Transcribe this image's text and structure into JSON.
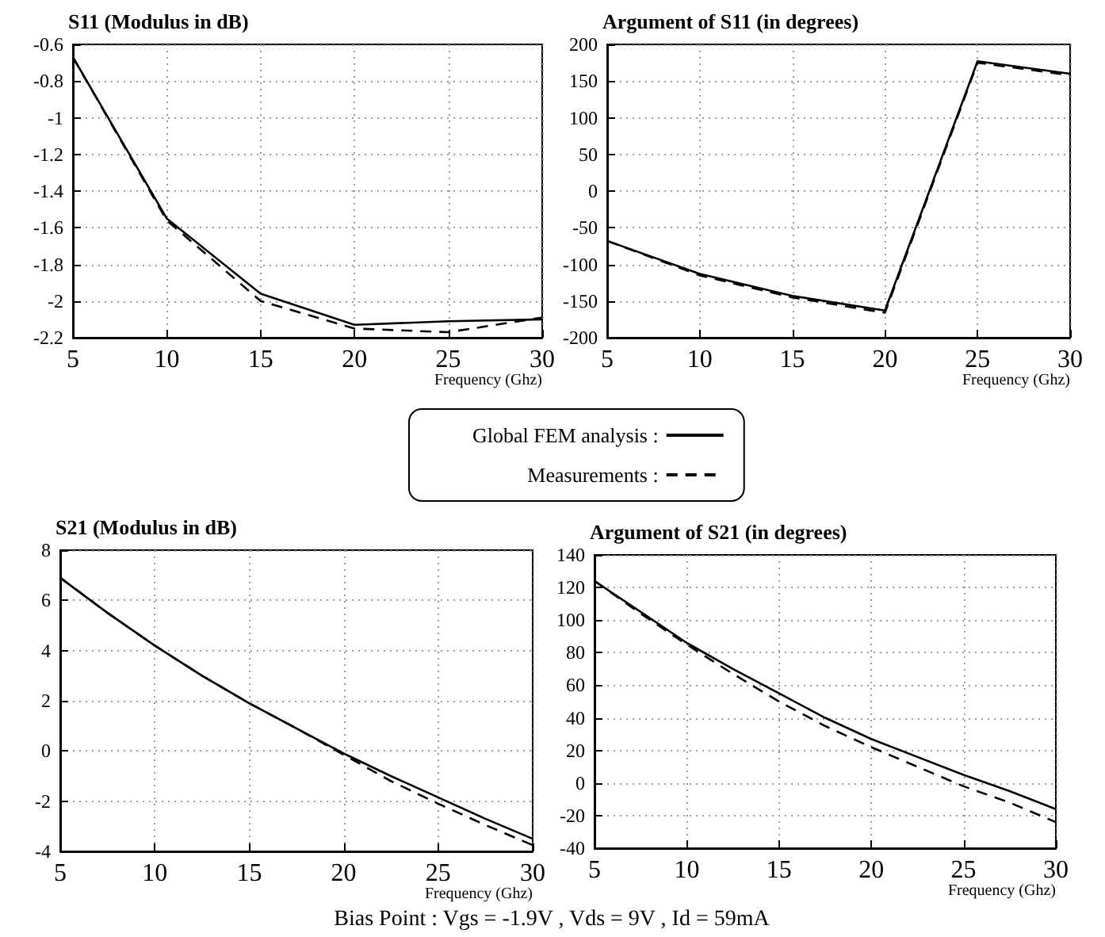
{
  "chart_data": [
    {
      "type": "line",
      "title": "S11 (Modulus in dB)",
      "xlabel": "Frequency (Ghz)",
      "legend": "bottom",
      "grid": true,
      "xlim": [
        5,
        30
      ],
      "xticks": [
        5,
        10,
        15,
        20,
        25,
        30
      ],
      "ylim": [
        -2.2,
        -0.6
      ],
      "yticks": [
        -2.2,
        -2,
        -1.8,
        -1.6,
        -1.4,
        -1.2,
        -1,
        -0.8,
        -0.6
      ],
      "x": [
        5,
        10,
        15,
        20,
        25,
        30
      ],
      "series": [
        {
          "name": "Global FEM analysis :",
          "color": "#000000",
          "line_style": "solid",
          "values": [
            -0.67,
            -1.55,
            -1.96,
            -2.13,
            -2.11,
            -2.1
          ]
        },
        {
          "name": "Measurements :",
          "color": "#000000",
          "line_style": "dashed",
          "values": [
            -0.67,
            -1.56,
            -2.0,
            -2.15,
            -2.17,
            -2.09
          ]
        }
      ]
    },
    {
      "type": "line",
      "title": "Argument of S11 (in degrees)",
      "xlabel": "Frequency (Ghz)",
      "grid": true,
      "xlim": [
        5,
        30
      ],
      "xticks": [
        5,
        10,
        15,
        20,
        25,
        30
      ],
      "ylim": [
        -200,
        200
      ],
      "yticks": [
        -200,
        -150,
        -100,
        -50,
        0,
        50,
        100,
        150,
        200
      ],
      "x": [
        5,
        10,
        15,
        20,
        25,
        30
      ],
      "series": [
        {
          "color": "#000000",
          "line_style": "solid",
          "values": [
            -68,
            -113,
            -143,
            -163,
            177,
            160
          ]
        },
        {
          "color": "#000000",
          "line_style": "dashed",
          "values": [
            -68,
            -115,
            -145,
            -166,
            175,
            158
          ]
        }
      ]
    },
    {
      "type": "line",
      "title": "S21 (Modulus in dB)",
      "xlabel": "Frequency (Ghz)",
      "grid": true,
      "xlim": [
        5,
        30
      ],
      "xticks": [
        5,
        10,
        15,
        20,
        25,
        30
      ],
      "ylim": [
        -4,
        8
      ],
      "yticks": [
        -4,
        -2,
        0,
        2,
        4,
        6,
        8
      ],
      "x": [
        5,
        7.5,
        10,
        12.5,
        15,
        17.5,
        20,
        22.5,
        25,
        27.5,
        30
      ],
      "annotations": [
        "Bias Point : Vgs = -1.9V , Vds = 9V , Id = 59mA"
      ],
      "series": [
        {
          "color": "#000000",
          "line_style": "solid",
          "values": [
            6.9,
            5.5,
            4.2,
            3.0,
            1.9,
            0.9,
            -0.1,
            -1.0,
            -1.85,
            -2.7,
            -3.5
          ]
        },
        {
          "color": "#000000",
          "line_style": "dashed",
          "values": [
            6.9,
            5.5,
            4.2,
            3.0,
            1.9,
            0.9,
            -0.15,
            -1.2,
            -2.1,
            -2.95,
            -3.75
          ]
        }
      ]
    },
    {
      "type": "line",
      "title": "Argument of S21 (in degrees)",
      "xlabel": "Frequency (Ghz)",
      "grid": true,
      "xlim": [
        5,
        30
      ],
      "xticks": [
        5,
        10,
        15,
        20,
        25,
        30
      ],
      "ylim": [
        -40,
        140
      ],
      "yticks": [
        -40,
        -20,
        0,
        20,
        40,
        60,
        80,
        100,
        120,
        140
      ],
      "x": [
        5,
        7.5,
        10,
        12.5,
        15,
        17.5,
        20,
        22.5,
        25,
        27.5,
        30
      ],
      "series": [
        {
          "color": "#000000",
          "line_style": "solid",
          "values": [
            124,
            105,
            86,
            70,
            55,
            40,
            27,
            16,
            5,
            -5,
            -16
          ]
        },
        {
          "color": "#000000",
          "line_style": "dashed",
          "values": [
            124,
            104,
            85,
            67,
            50,
            35,
            22,
            10,
            -2,
            -12,
            -24
          ]
        }
      ]
    }
  ]
}
